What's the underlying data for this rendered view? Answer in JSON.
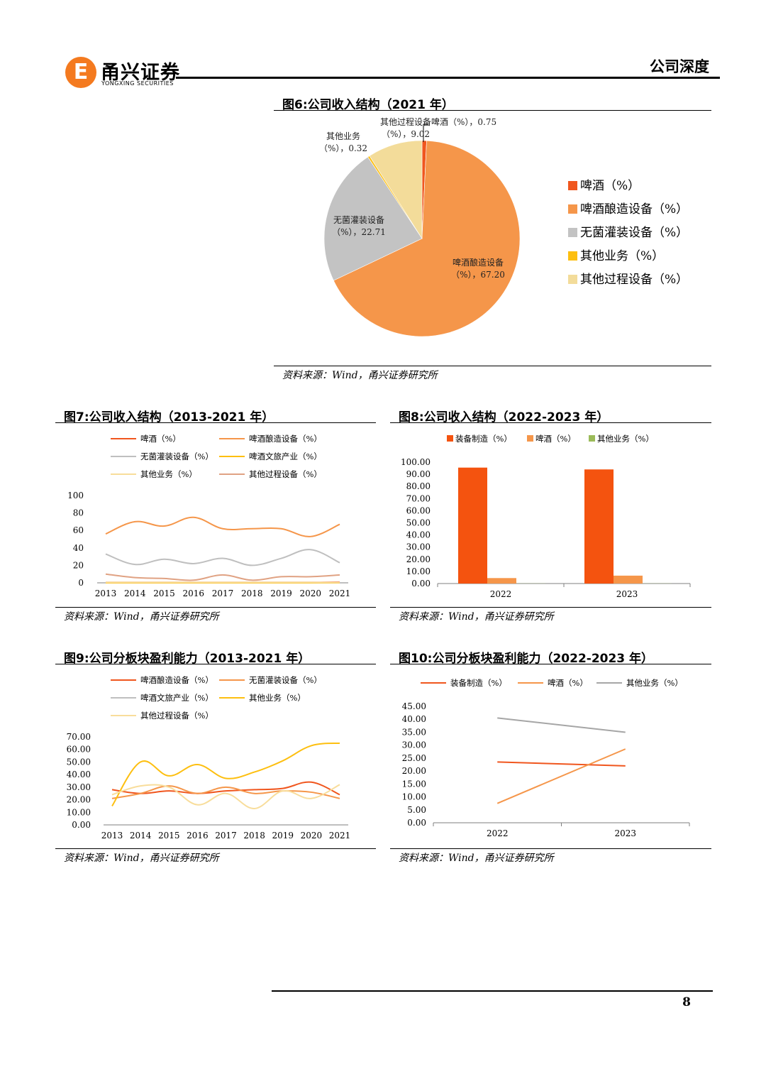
{
  "header": {
    "logo_cn": "甬兴证券",
    "logo_en": "YONGXING SECURITIES",
    "logo_mark": "E",
    "section": "公司深度"
  },
  "page_number": "8",
  "source_text": "资料来源：Wind，甬兴证券研究所",
  "figures": {
    "fig6": {
      "title": "图6:公司收入结构（2021 年）",
      "labels": [
        "啤酒（%），0.75",
        "其他过程设备",
        "（%），9.02",
        "其他业务",
        "（%），0.32",
        "无菌灌装设备",
        "（%），22.71",
        "啤酒酿造设备",
        "（%），67.20"
      ]
    },
    "fig7": {
      "title": "图7:公司收入结构（2013-2021 年）"
    },
    "fig8": {
      "title": "图8:公司收入结构（2022-2023 年）"
    },
    "fig9": {
      "title": "图9:公司分板块盈利能力（2013-2021 年）"
    },
    "fig10": {
      "title": "图10:公司分板块盈利能力（2022-2023 年）"
    }
  },
  "chart_data": [
    {
      "id": "fig6",
      "type": "pie",
      "title": "图6:公司收入结构（2021 年）",
      "legend_position": "right",
      "series": [
        {
          "name": "啤酒（%）",
          "value": 0.75,
          "color": "#f0561e"
        },
        {
          "name": "啤酒酿造设备（%）",
          "value": 67.2,
          "color": "#f5964a"
        },
        {
          "name": "无菌灌装设备（%）",
          "value": 22.71,
          "color": "#c3c3c3"
        },
        {
          "name": "其他业务（%）",
          "value": 0.32,
          "color": "#fdbf10"
        },
        {
          "name": "其他过程设备（%）",
          "value": 9.02,
          "color": "#f3dc9a"
        }
      ]
    },
    {
      "id": "fig7",
      "type": "line",
      "title": "图7:公司收入结构（2013-2021 年）",
      "x": [
        "2013",
        "2014",
        "2015",
        "2016",
        "2017",
        "2018",
        "2019",
        "2020",
        "2021"
      ],
      "ylim": [
        0,
        100
      ],
      "yticks": [
        "0",
        "20",
        "40",
        "60",
        "80",
        "100"
      ],
      "legend_position": "top",
      "series": [
        {
          "name": "啤酒（%）",
          "color": "#f0561e",
          "values": [
            0.5,
            0.5,
            0.5,
            0.5,
            0.5,
            0.5,
            0.5,
            0.5,
            0.75
          ]
        },
        {
          "name": "啤酒酿造设备（%）",
          "color": "#f5964a",
          "values": [
            56,
            70,
            65,
            75,
            62,
            62,
            62,
            53,
            67
          ]
        },
        {
          "name": "无菌灌装设备（%）",
          "color": "#bfbfbf",
          "values": [
            33,
            21,
            27,
            22,
            28,
            20,
            28,
            38,
            23
          ]
        },
        {
          "name": "啤酒文旅产业（%）",
          "color": "#fdbf10",
          "values": [
            0,
            0,
            0,
            0,
            0,
            0,
            0,
            0,
            0
          ]
        },
        {
          "name": "其他业务（%）",
          "color": "#f8dd9b",
          "values": [
            0.5,
            0.5,
            0.5,
            0.5,
            0.5,
            0.5,
            0.5,
            0.5,
            0.3
          ]
        },
        {
          "name": "其他过程设备（%）",
          "color": "#e0a283",
          "values": [
            10,
            6,
            5,
            3,
            9,
            3,
            7,
            7,
            9
          ]
        }
      ]
    },
    {
      "id": "fig8",
      "type": "bar",
      "title": "图8:公司收入结构（2022-2023 年）",
      "categories": [
        "2022",
        "2023"
      ],
      "ylim": [
        0,
        100
      ],
      "yticks": [
        "0.00",
        "10.00",
        "20.00",
        "30.00",
        "40.00",
        "50.00",
        "60.00",
        "70.00",
        "80.00",
        "90.00",
        "100.00"
      ],
      "legend_position": "top",
      "series": [
        {
          "name": "装备制造（%）",
          "color": "#f4530f",
          "values": [
            95.5,
            94
          ]
        },
        {
          "name": "啤酒（%）",
          "color": "#f5964a",
          "values": [
            4.5,
            6.5
          ]
        },
        {
          "name": "其他业务（%）",
          "color": "#9bbb59",
          "values": [
            0.1,
            0.1
          ]
        }
      ]
    },
    {
      "id": "fig9",
      "type": "line",
      "title": "图9:公司分板块盈利能力（2013-2021 年）",
      "x": [
        "2013",
        "2014",
        "2015",
        "2016",
        "2017",
        "2018",
        "2019",
        "2020",
        "2021"
      ],
      "ylim": [
        0,
        70
      ],
      "yticks": [
        "0.00",
        "10.00",
        "20.00",
        "30.00",
        "40.00",
        "50.00",
        "60.00",
        "70.00"
      ],
      "legend_position": "top",
      "series": [
        {
          "name": "啤酒酿造设备（%）",
          "color": "#f0561e",
          "values": [
            28,
            25,
            27,
            25,
            27,
            28,
            29,
            34,
            24
          ]
        },
        {
          "name": "无菌灌装设备（%）",
          "color": "#f5964a",
          "values": [
            21,
            25,
            31,
            25,
            30,
            25,
            27,
            26,
            21
          ]
        },
        {
          "name": "啤酒文旅产业（%）",
          "color": "#bfbfbf",
          "values": [
            null,
            null,
            null,
            null,
            null,
            null,
            null,
            null,
            null
          ]
        },
        {
          "name": "其他业务（%）",
          "color": "#fdbf10",
          "values": [
            15,
            50,
            39,
            48,
            37,
            42,
            51,
            63,
            65
          ]
        },
        {
          "name": "其他过程设备（%）",
          "color": "#f8dd9b",
          "values": [
            24,
            31,
            30,
            16,
            25,
            13,
            27,
            21,
            32
          ]
        }
      ]
    },
    {
      "id": "fig10",
      "type": "line",
      "title": "图10:公司分板块盈利能力（2022-2023 年）",
      "x": [
        "2022",
        "2023"
      ],
      "ylim": [
        0,
        45
      ],
      "yticks": [
        "0.00",
        "5.00",
        "10.00",
        "15.00",
        "20.00",
        "25.00",
        "30.00",
        "35.00",
        "40.00",
        "45.00"
      ],
      "legend_position": "top",
      "series": [
        {
          "name": "装备制造（%）",
          "color": "#f0561e",
          "values": [
            23.5,
            22
          ]
        },
        {
          "name": "啤酒（%）",
          "color": "#f5964a",
          "values": [
            7.5,
            28.5
          ]
        },
        {
          "name": "其他业务（%）",
          "color": "#a6a6a6",
          "values": [
            40.5,
            35
          ]
        }
      ]
    }
  ]
}
